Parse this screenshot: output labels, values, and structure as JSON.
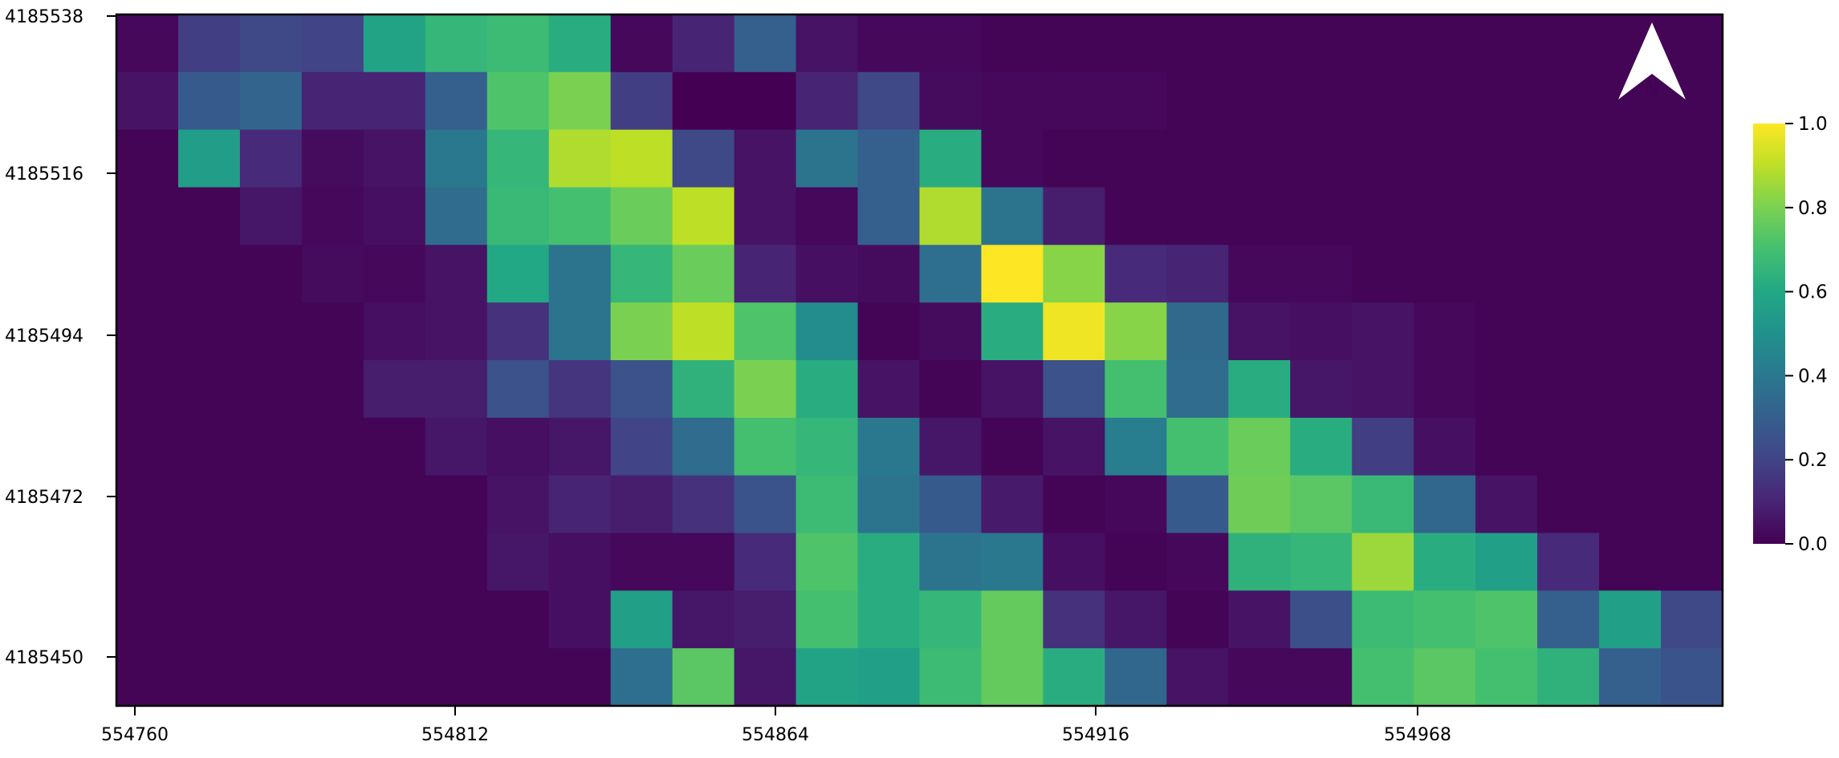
{
  "chart_data": {
    "type": "heatmap",
    "title": "",
    "xlabel": "",
    "ylabel": "",
    "x_ticks": [
      "554760",
      "554812",
      "554864",
      "554916",
      "554968"
    ],
    "y_ticks": [
      "4185538",
      "4185516",
      "4185494",
      "4185472",
      "4185450"
    ],
    "colorbar": {
      "min": 0.0,
      "max": 1.0,
      "ticks": [
        "0.0",
        "0.2",
        "0.4",
        "0.6",
        "0.8",
        "1.0"
      ],
      "colormap": "viridis"
    },
    "north_arrow_label": "N",
    "grid": false,
    "cells": [
      [
        0.02,
        0.18,
        0.22,
        0.2,
        0.58,
        0.66,
        0.68,
        0.62,
        0.02,
        0.1,
        0.3,
        0.05,
        0.02,
        0.02,
        0.01,
        0.01,
        0.01,
        0.01,
        0.01,
        0.01,
        0.01,
        0.01,
        0.01,
        0.01,
        0.01,
        0.01
      ],
      [
        0.05,
        0.28,
        0.32,
        0.1,
        0.1,
        0.3,
        0.72,
        0.8,
        0.18,
        0.0,
        0.0,
        0.1,
        0.22,
        0.03,
        0.02,
        0.02,
        0.02,
        0.01,
        0.01,
        0.01,
        0.01,
        0.01,
        0.01,
        0.01,
        0.01,
        0.01
      ],
      [
        0.01,
        0.55,
        0.12,
        0.03,
        0.05,
        0.4,
        0.66,
        0.88,
        0.9,
        0.22,
        0.05,
        0.38,
        0.3,
        0.62,
        0.02,
        0.01,
        0.01,
        0.01,
        0.01,
        0.01,
        0.01,
        0.01,
        0.01,
        0.01,
        0.01,
        0.01
      ],
      [
        0.01,
        0.01,
        0.06,
        0.02,
        0.04,
        0.35,
        0.67,
        0.7,
        0.77,
        0.9,
        0.05,
        0.02,
        0.3,
        0.88,
        0.38,
        0.08,
        0.01,
        0.01,
        0.01,
        0.01,
        0.01,
        0.01,
        0.01,
        0.01,
        0.01,
        0.01
      ],
      [
        0.01,
        0.01,
        0.01,
        0.03,
        0.02,
        0.05,
        0.6,
        0.38,
        0.66,
        0.77,
        0.1,
        0.04,
        0.03,
        0.36,
        1.0,
        0.82,
        0.12,
        0.1,
        0.02,
        0.02,
        0.01,
        0.01,
        0.01,
        0.01,
        0.01,
        0.01
      ],
      [
        0.01,
        0.01,
        0.01,
        0.01,
        0.04,
        0.05,
        0.14,
        0.38,
        0.8,
        0.9,
        0.72,
        0.48,
        0.01,
        0.03,
        0.62,
        0.98,
        0.82,
        0.34,
        0.05,
        0.04,
        0.05,
        0.02,
        0.01,
        0.01,
        0.01,
        0.01
      ],
      [
        0.01,
        0.01,
        0.01,
        0.01,
        0.08,
        0.08,
        0.25,
        0.15,
        0.25,
        0.64,
        0.8,
        0.62,
        0.05,
        0.01,
        0.05,
        0.25,
        0.7,
        0.35,
        0.62,
        0.06,
        0.05,
        0.02,
        0.01,
        0.01,
        0.01,
        0.01
      ],
      [
        0.01,
        0.01,
        0.01,
        0.01,
        0.01,
        0.06,
        0.04,
        0.06,
        0.2,
        0.35,
        0.7,
        0.66,
        0.4,
        0.06,
        0.01,
        0.05,
        0.42,
        0.7,
        0.77,
        0.62,
        0.18,
        0.04,
        0.01,
        0.01,
        0.01,
        0.01
      ],
      [
        0.01,
        0.01,
        0.01,
        0.01,
        0.01,
        0.01,
        0.05,
        0.1,
        0.08,
        0.14,
        0.26,
        0.68,
        0.38,
        0.28,
        0.07,
        0.01,
        0.02,
        0.28,
        0.78,
        0.74,
        0.67,
        0.33,
        0.05,
        0.01,
        0.01,
        0.01
      ],
      [
        0.01,
        0.01,
        0.01,
        0.01,
        0.01,
        0.01,
        0.06,
        0.04,
        0.02,
        0.02,
        0.12,
        0.72,
        0.62,
        0.38,
        0.4,
        0.04,
        0.01,
        0.02,
        0.64,
        0.66,
        0.85,
        0.62,
        0.56,
        0.12,
        0.01,
        0.01
      ],
      [
        0.01,
        0.01,
        0.01,
        0.01,
        0.01,
        0.01,
        0.01,
        0.04,
        0.56,
        0.06,
        0.08,
        0.7,
        0.62,
        0.66,
        0.76,
        0.14,
        0.06,
        0.01,
        0.05,
        0.24,
        0.68,
        0.7,
        0.72,
        0.3,
        0.56,
        0.22
      ],
      [
        0.01,
        0.01,
        0.01,
        0.01,
        0.01,
        0.01,
        0.01,
        0.01,
        0.36,
        0.74,
        0.06,
        0.58,
        0.56,
        0.68,
        0.76,
        0.62,
        0.33,
        0.05,
        0.02,
        0.02,
        0.7,
        0.74,
        0.7,
        0.64,
        0.3,
        0.26
      ]
    ]
  }
}
